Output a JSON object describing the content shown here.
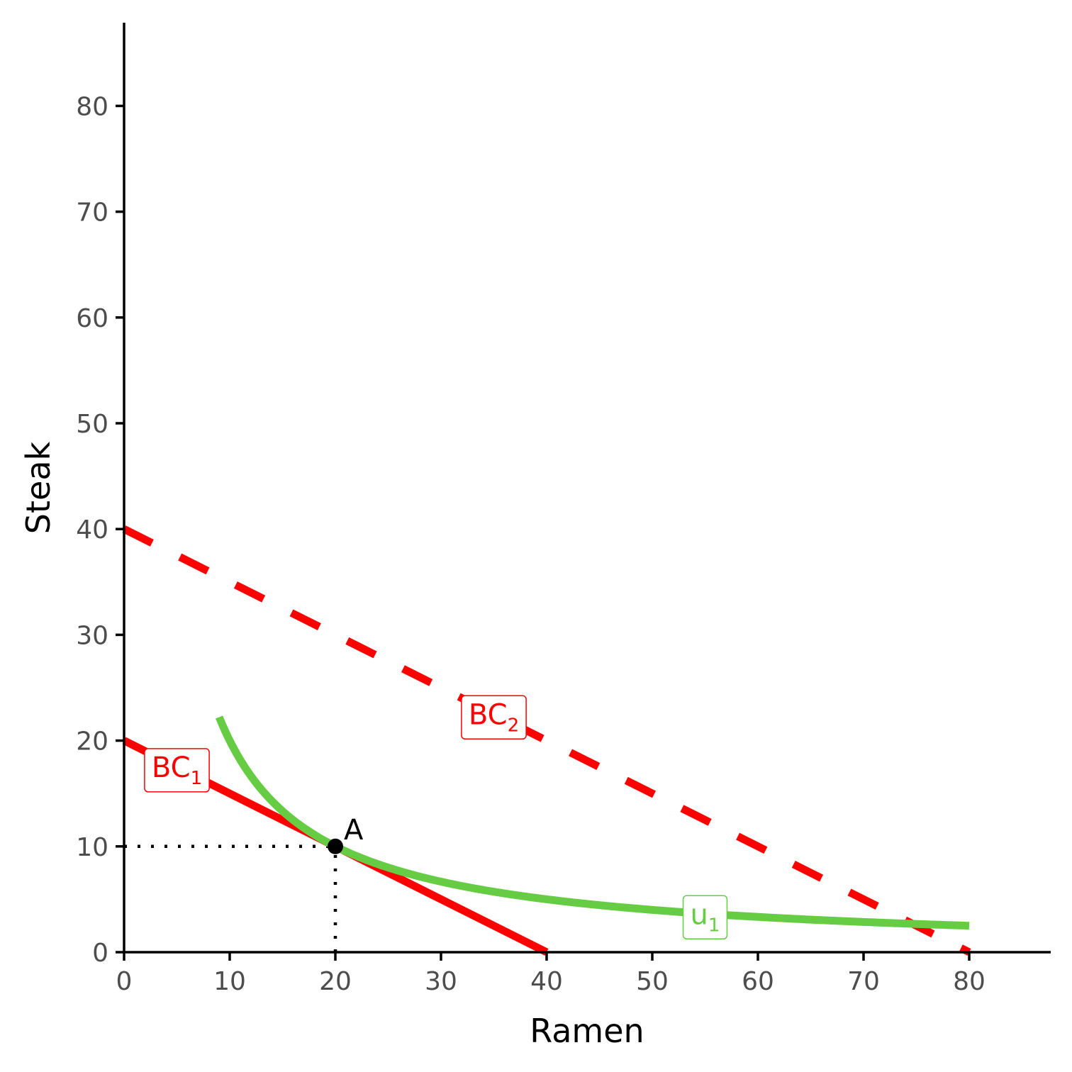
{
  "chart_data": {
    "type": "line",
    "title": "",
    "xlabel": "Ramen",
    "ylabel": "Steak",
    "xlim": [
      0,
      88
    ],
    "ylim": [
      0,
      88
    ],
    "x_ticks": [
      0,
      10,
      20,
      30,
      40,
      50,
      60,
      70,
      80
    ],
    "y_ticks": [
      0,
      10,
      20,
      30,
      40,
      50,
      60,
      70,
      80
    ],
    "grid": false,
    "series": [
      {
        "key": "bc1",
        "label_main": "BC",
        "label_sub": "1",
        "style": "solid",
        "color": "#ff0000",
        "x": [
          0,
          40
        ],
        "y": [
          20,
          0
        ],
        "label_at": [
          5,
          17.5
        ]
      },
      {
        "key": "bc2",
        "label_main": "BC",
        "label_sub": "2",
        "style": "dashed",
        "color": "#ff0000",
        "x": [
          0,
          80
        ],
        "y": [
          40,
          0
        ],
        "label_at": [
          35,
          22.5
        ]
      },
      {
        "key": "u1",
        "label_main": "u",
        "label_sub": "1",
        "style": "solid",
        "color": "#66cc44",
        "function": "y = 200 / x",
        "x_range": [
          9,
          80
        ],
        "label_at": [
          55,
          3.6
        ]
      }
    ],
    "points": [
      {
        "label": "A",
        "x": 20,
        "y": 10
      }
    ],
    "guides": [
      {
        "from": [
          0,
          10
        ],
        "to": [
          20,
          10
        ],
        "style": "dotted"
      },
      {
        "from": [
          20,
          0
        ],
        "to": [
          20,
          10
        ],
        "style": "dotted"
      }
    ]
  }
}
